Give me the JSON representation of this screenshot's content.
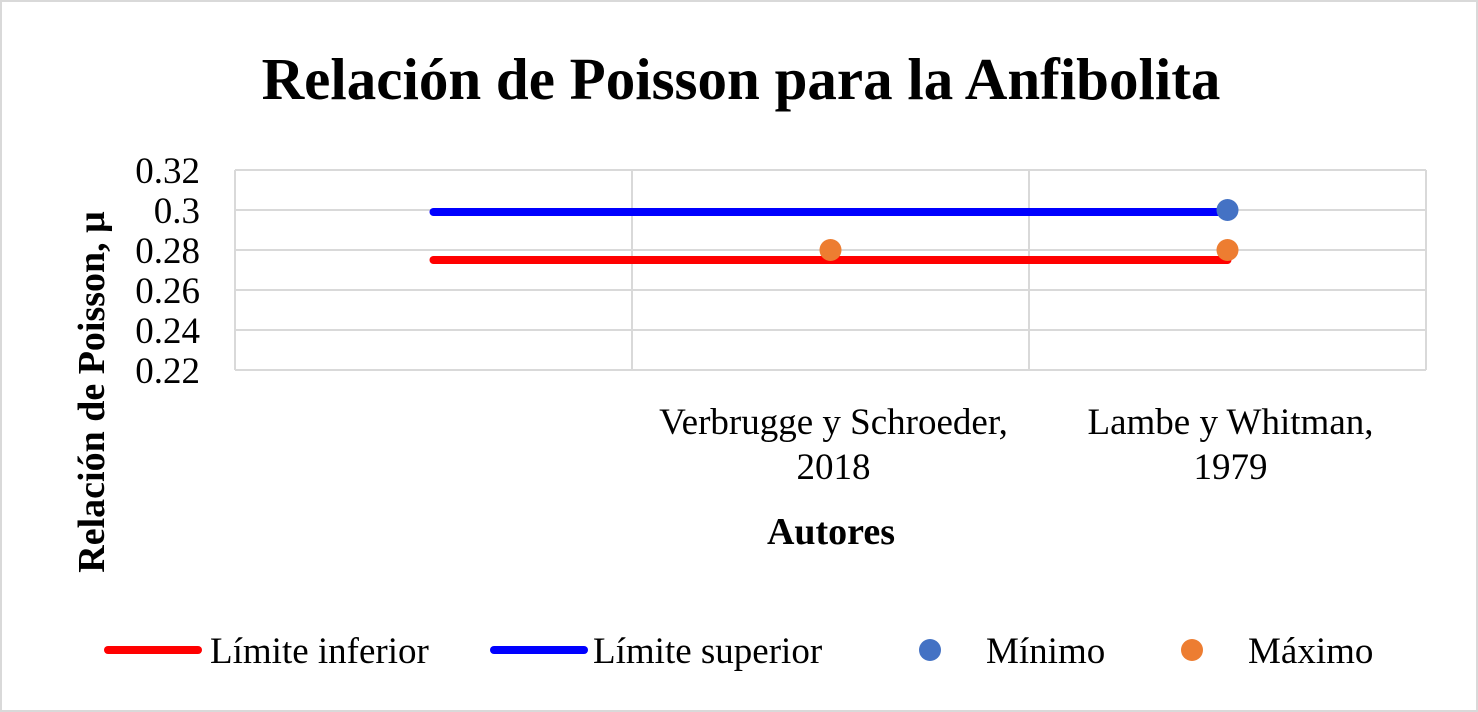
{
  "chart_data": {
    "type": "line",
    "title": "Relación de Poisson para la Anfibolita",
    "xlabel": "Autores",
    "ylabel": "Relación de Poisson, μ",
    "categories": [
      [
        "",
        ""
      ],
      [
        "Verbrugge y Schroeder,",
        "2018"
      ],
      [
        "Lambe y Whitman,",
        "1979"
      ]
    ],
    "ylim": [
      0.22,
      0.32
    ],
    "yticks": [
      "0.32",
      "0.3",
      "0.28",
      "0.26",
      "0.24",
      "0.22"
    ],
    "grid": true,
    "legend_position": "bottom",
    "series": [
      {
        "name": "Límite  inferior",
        "kind": "line",
        "color": "#ff0000",
        "x": [
          0.5,
          2.5
        ],
        "values": [
          0.275,
          0.275
        ]
      },
      {
        "name": "Límite  superior",
        "kind": "line",
        "color": "#0000ff",
        "x": [
          0.5,
          2.5
        ],
        "values": [
          0.299,
          0.299
        ]
      },
      {
        "name": "Mínimo",
        "kind": "marker",
        "color": "#4472c4",
        "points": [
          {
            "x": 2.5,
            "y": 0.3
          }
        ]
      },
      {
        "name": "Máximo",
        "kind": "marker",
        "color": "#ed7d31",
        "points": [
          {
            "x": 1.5,
            "y": 0.28
          },
          {
            "x": 2.5,
            "y": 0.28
          }
        ]
      }
    ]
  }
}
